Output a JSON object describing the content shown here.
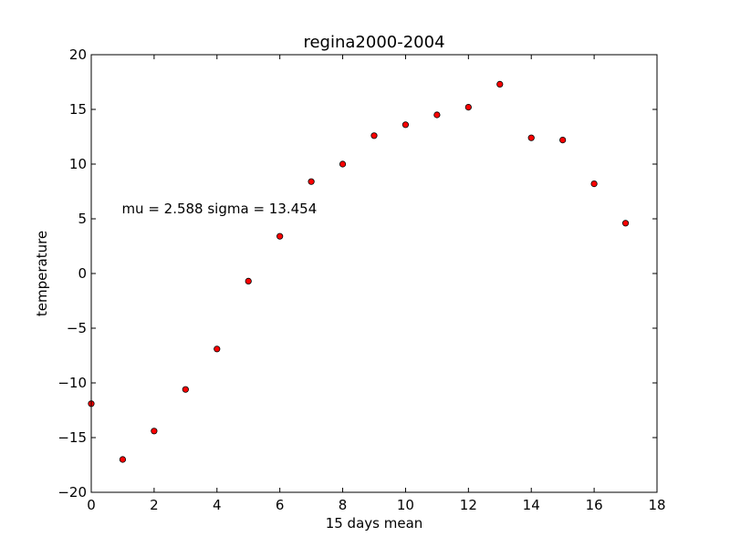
{
  "chart_data": {
    "type": "scatter",
    "title": "regina2000-2004",
    "xlabel": "15 days mean",
    "ylabel": "temperature",
    "xlim": [
      0,
      18
    ],
    "ylim": [
      -20,
      20
    ],
    "xticks": [
      0,
      2,
      4,
      6,
      8,
      10,
      12,
      14,
      16,
      18
    ],
    "yticks": [
      -20,
      -15,
      -10,
      -5,
      0,
      5,
      10,
      15,
      20
    ],
    "xtick_labels": [
      "0",
      "2",
      "4",
      "6",
      "8",
      "10",
      "12",
      "14",
      "16",
      "18"
    ],
    "ytick_labels": [
      "−20",
      "−15",
      "−10",
      "−5",
      "0",
      "5",
      "10",
      "15",
      "20"
    ],
    "grid": false,
    "marker_color": "#ff0000",
    "marker_edge_color": "#000000",
    "x": [
      0,
      1,
      2,
      3,
      4,
      5,
      6,
      7,
      8,
      9,
      10,
      11,
      12,
      13,
      14,
      15,
      16,
      17
    ],
    "y": [
      -11.9,
      -17.0,
      -14.4,
      -10.6,
      -6.9,
      -0.7,
      3.4,
      8.4,
      10.0,
      12.6,
      13.6,
      14.5,
      15.2,
      17.3,
      12.4,
      12.2,
      8.2,
      4.6
    ],
    "annotation": {
      "text": "mu = 2.588 sigma = 13.454",
      "x": 1.0,
      "y": 5.5
    }
  }
}
